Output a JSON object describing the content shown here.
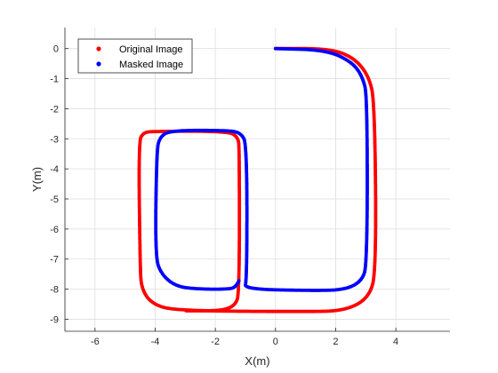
{
  "chart_data": {
    "type": "scatter",
    "title": "",
    "xlabel": "X(m)",
    "ylabel": "Y(m)",
    "xlim": [
      -7,
      5.8
    ],
    "ylim": [
      -9.4,
      0.7
    ],
    "xticks": [
      -6,
      -4,
      -2,
      0,
      2,
      4
    ],
    "yticks": [
      0,
      -1,
      -2,
      -3,
      -4,
      -5,
      -6,
      -7,
      -8,
      -9
    ],
    "xtick_labels": [
      "-6",
      "-4",
      "-2",
      "0",
      "2",
      "4"
    ],
    "ytick_labels": [
      "0",
      "-1",
      "-2",
      "-3",
      "-4",
      "-5",
      "-6",
      "-7",
      "-8",
      "-9"
    ],
    "grid": true,
    "legend_position": "top-left",
    "series": [
      {
        "name": "Original Image",
        "color": "#ff0000",
        "vertices": [
          [
            0,
            0
          ],
          [
            1.8,
            0.0
          ],
          [
            2.6,
            -0.3
          ],
          [
            3.1,
            -0.9
          ],
          [
            3.3,
            -1.8
          ],
          [
            3.35,
            -7.4
          ],
          [
            3.1,
            -8.3
          ],
          [
            2.3,
            -8.72
          ],
          [
            1.0,
            -8.75
          ],
          [
            -3.3,
            -8.72
          ],
          [
            -4.1,
            -8.5
          ],
          [
            -4.45,
            -8.0
          ],
          [
            -4.5,
            -7.3
          ],
          [
            -4.55,
            -3.1
          ],
          [
            -4.4,
            -2.8
          ],
          [
            -4.1,
            -2.75
          ],
          [
            -1.55,
            -2.75
          ],
          [
            -1.25,
            -2.95
          ],
          [
            -1.2,
            -3.3
          ],
          [
            -1.2,
            -8.15
          ],
          [
            -1.35,
            -8.55
          ],
          [
            -1.8,
            -8.72
          ],
          [
            -3.0,
            -8.72
          ]
        ]
      },
      {
        "name": "Masked Image",
        "color": "#0000ff",
        "vertices": [
          [
            0,
            0
          ],
          [
            1.7,
            -0.05
          ],
          [
            2.55,
            -0.45
          ],
          [
            2.9,
            -0.95
          ],
          [
            3.05,
            -1.6
          ],
          [
            3.05,
            -7.2
          ],
          [
            2.85,
            -7.75
          ],
          [
            2.3,
            -8.02
          ],
          [
            1.3,
            -8.05
          ],
          [
            -1.05,
            -8.0
          ],
          [
            -0.95,
            -7.7
          ],
          [
            -0.95,
            -3.2
          ],
          [
            -1.15,
            -2.8
          ],
          [
            -1.6,
            -2.72
          ],
          [
            -3.5,
            -2.72
          ],
          [
            -3.85,
            -2.95
          ],
          [
            -3.95,
            -3.4
          ],
          [
            -4.0,
            -6.9
          ],
          [
            -3.8,
            -7.5
          ],
          [
            -3.3,
            -7.92
          ],
          [
            -2.5,
            -8.0
          ],
          [
            -1.6,
            -8.0
          ],
          [
            -1.35,
            -7.95
          ],
          [
            -1.2,
            -7.7
          ]
        ]
      }
    ]
  }
}
